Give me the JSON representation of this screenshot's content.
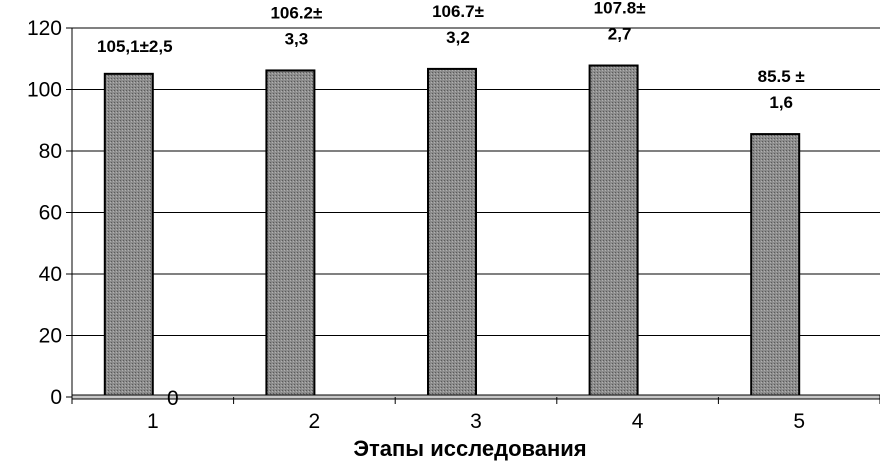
{
  "chart_data": {
    "type": "bar",
    "xlabel": "Этапы исследования",
    "ylabel": "",
    "categories": [
      "1",
      "2",
      "3",
      "4",
      "5"
    ],
    "series": [
      {
        "values": [
          105.1,
          106.2,
          106.7,
          107.8,
          85.5
        ],
        "labels": [
          [
            "105,1±2,5"
          ],
          [
            "106.2±",
            "3,3"
          ],
          [
            "106.7±",
            "3,2"
          ],
          [
            "107.8±",
            "2,7"
          ],
          [
            "85.5 ±",
            "1,6"
          ]
        ]
      },
      {
        "values": [
          0,
          0,
          0,
          0,
          0
        ],
        "labels": [
          [
            "0"
          ],
          [],
          [],
          [],
          []
        ]
      }
    ],
    "ylim": [
      0,
      120
    ],
    "yticks": [
      0,
      20,
      40,
      60,
      80,
      100,
      120
    ],
    "grid": true,
    "colors": {
      "bar_fill": "#8c8c8c",
      "bar_edge": "#000000",
      "grid": "#000000"
    }
  }
}
